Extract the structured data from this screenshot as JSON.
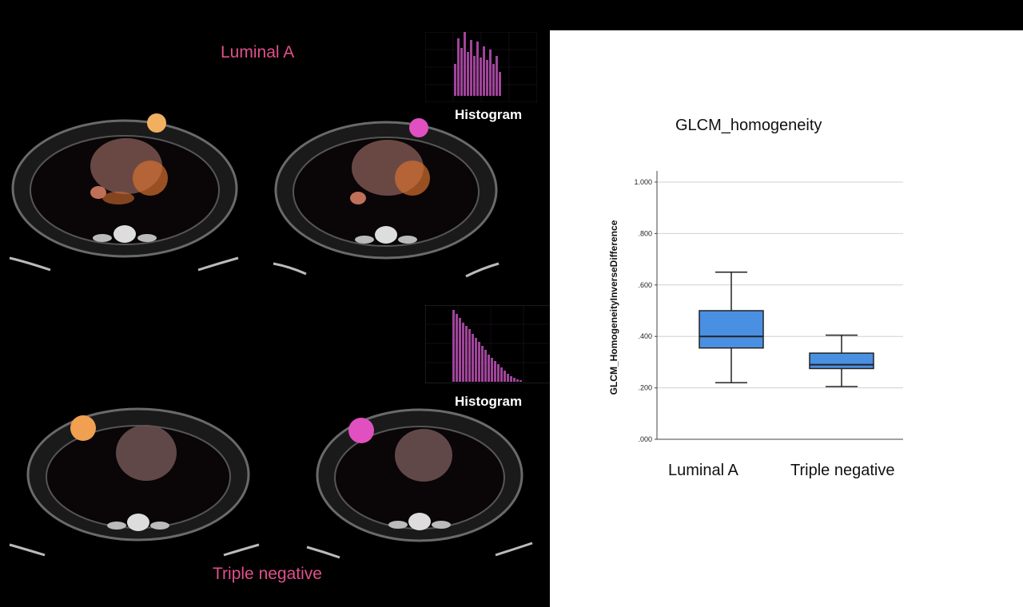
{
  "top_group_label": "Luminal A",
  "bottom_group_label": "Triple negative",
  "histogram_label_top": "Histogram",
  "histogram_label_bottom": "Histogram",
  "colors": {
    "box_fill": "#4a90e2",
    "group_label": "#e0508a",
    "histogram_bars": "#b04aa0"
  },
  "icons": {
    "scan_images": "pet-ct-axial-slice",
    "histograms": "intensity-histogram"
  },
  "chart_data": {
    "type": "box",
    "title": "GLCM_homogeneity",
    "ylabel": "GLCM_HomogeneityInverseDifference",
    "xlabel": "",
    "categories": [
      "Luminal A",
      "Triple negative"
    ],
    "yticks": [
      "1.000",
      ".800",
      ".600",
      ".400",
      ".200",
      ".000"
    ],
    "ylim": [
      0,
      1.0
    ],
    "grid": true,
    "boxes": [
      {
        "category": "Luminal A",
        "whisker_low": 0.22,
        "q1": 0.355,
        "median": 0.4,
        "q3": 0.5,
        "whisker_high": 0.65
      },
      {
        "category": "Triple negative",
        "whisker_low": 0.205,
        "q1": 0.275,
        "median": 0.29,
        "q3": 0.335,
        "whisker_high": 0.405
      }
    ]
  }
}
